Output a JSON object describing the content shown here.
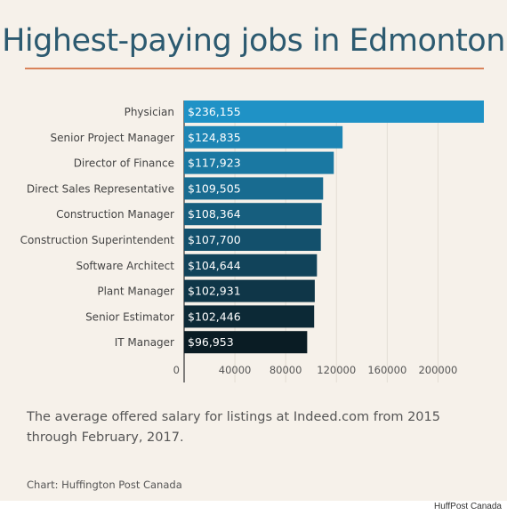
{
  "title": "Highest-paying jobs in Edmonton",
  "caption": "The average offered salary for listings at Indeed.com from 2015 through February, 2017.",
  "credit": "Chart: Huffington Post Canada",
  "footer": "HuffPost Canada",
  "colors": {
    "background": "#f6f1ea",
    "title": "#2c5a70",
    "rule": "#d9835a",
    "bar_top": "#1f92c6",
    "bar_bottom": "#0a1c24"
  },
  "chart_data": {
    "type": "bar",
    "orientation": "horizontal",
    "categories": [
      "Physician",
      "Senior Project Manager",
      "Director of Finance",
      "Direct Sales Representative",
      "Construction Manager",
      "Construction Superintendent",
      "Software Architect",
      "Plant Manager",
      "Senior Estimator",
      "IT Manager"
    ],
    "values": [
      236155,
      124835,
      117923,
      109505,
      108364,
      107700,
      104644,
      102931,
      102446,
      96953
    ],
    "data_labels": [
      "$236,155",
      "$124,835",
      "$117,923",
      "$109,505",
      "$108,364",
      "$107,700",
      "$104,644",
      "$102,931",
      "$102,446",
      "$96,953"
    ],
    "x_ticks": [
      0,
      40000,
      80000,
      120000,
      160000,
      200000
    ],
    "xlim": [
      0,
      236155
    ],
    "grid": true,
    "legend": "none"
  }
}
